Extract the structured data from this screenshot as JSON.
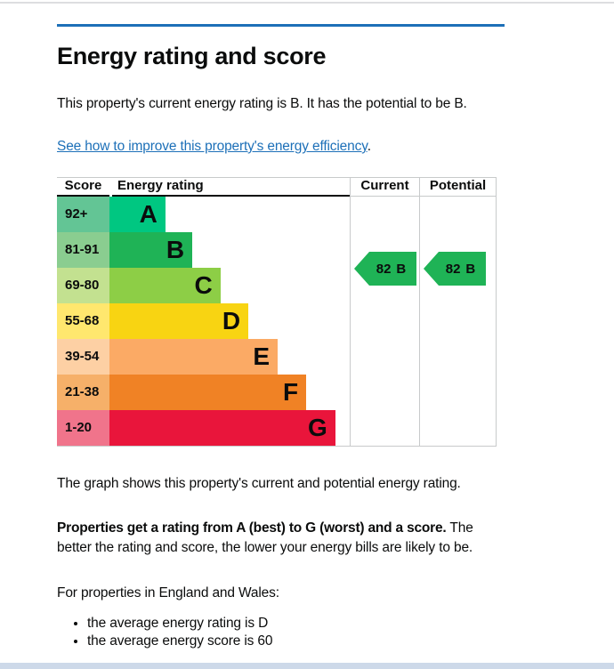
{
  "page": {
    "title": "Energy rating and score",
    "intro": "This property's current energy rating is B. It has the potential to be B.",
    "improvement_link": "See how to improve this property's energy efficiency",
    "improvement_link_suffix": ".",
    "caption": "The graph shows this property's current and potential energy rating.",
    "explainer_bold": "Properties get a rating from A (best) to G (worst) and a score.",
    "explainer_rest": " The better the rating and score, the lower your energy bills are likely to be.",
    "region_note": "For properties in England and Wales:",
    "bullets": [
      "the average energy rating is D",
      "the average energy score is 60"
    ]
  },
  "colors": {
    "accent_blue": "#1d70b8",
    "text": "#0b0c0c",
    "border_grey": "#c8cacb",
    "footer_strip": "#cdd9e9"
  },
  "chart_data": {
    "type": "bar",
    "title": "Energy rating and score",
    "headers": {
      "score": "Score",
      "rating": "Energy rating",
      "current": "Current",
      "potential": "Potential"
    },
    "bands": [
      {
        "letter": "A",
        "score_range": "92+",
        "bar_color": "#00c781",
        "score_bg": "#63c595",
        "width_pct": 23.3
      },
      {
        "letter": "B",
        "score_range": "81-91",
        "bar_color": "#1fb356",
        "score_bg": "#8acd90",
        "width_pct": 34.5
      },
      {
        "letter": "C",
        "score_range": "69-80",
        "bar_color": "#8dce46",
        "score_bg": "#c3e190",
        "width_pct": 46.2
      },
      {
        "letter": "D",
        "score_range": "55-68",
        "bar_color": "#f8d412",
        "score_bg": "#ffe76e",
        "width_pct": 57.8
      },
      {
        "letter": "E",
        "score_range": "39-54",
        "bar_color": "#fbaa65",
        "score_bg": "#fdd0a4",
        "width_pct": 70
      },
      {
        "letter": "F",
        "score_range": "21-38",
        "bar_color": "#f08225",
        "score_bg": "#f6b069",
        "width_pct": 81.9
      },
      {
        "letter": "G",
        "score_range": "1-20",
        "bar_color": "#e9153b",
        "score_bg": "#f0748b",
        "width_pct": 94
      }
    ],
    "current": {
      "score": 82,
      "band": "B",
      "color": "#1fb356",
      "band_index": 1
    },
    "potential": {
      "score": 82,
      "band": "B",
      "color": "#1fb356",
      "band_index": 1
    }
  }
}
